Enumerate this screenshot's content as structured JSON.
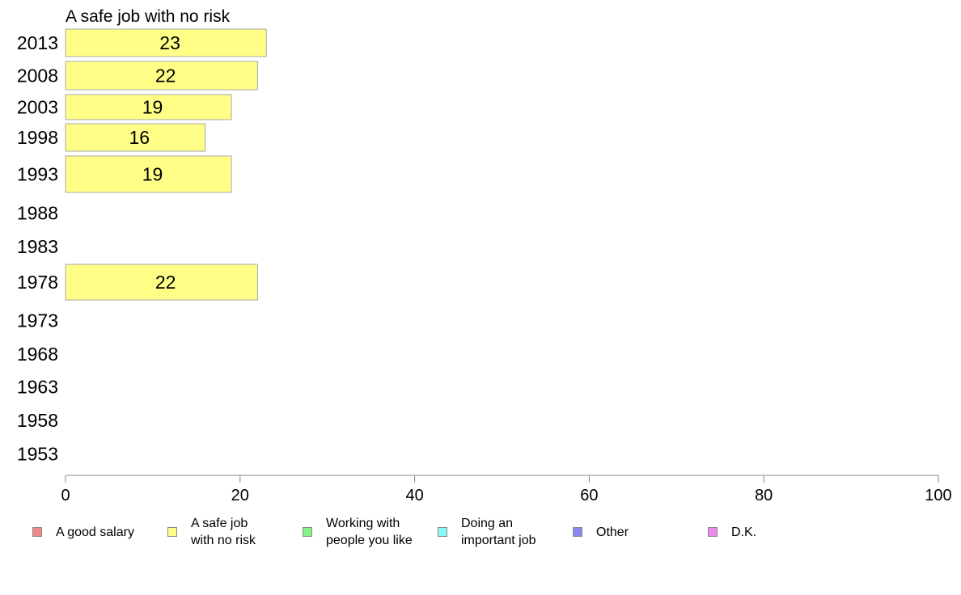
{
  "chart_data": {
    "type": "bar",
    "orientation": "horizontal",
    "title": "A safe job with no risk",
    "categories": [
      "2013",
      "2008",
      "2003",
      "1998",
      "1993",
      "1988",
      "1983",
      "1978",
      "1973",
      "1968",
      "1963",
      "1958",
      "1953"
    ],
    "values": [
      23,
      22,
      19,
      16,
      19,
      null,
      null,
      22,
      null,
      null,
      null,
      null,
      null
    ],
    "data_labels": [
      "23",
      "22",
      "19",
      "16",
      "19",
      "",
      "",
      "22",
      "",
      "",
      "",
      "",
      ""
    ],
    "xlim": [
      0,
      100
    ],
    "x_ticks": [
      0,
      20,
      40,
      60,
      80,
      100
    ],
    "x_tick_labels": [
      "0",
      "20",
      "40",
      "60",
      "80",
      "100"
    ],
    "xlabel": "",
    "ylabel": "",
    "grid": false,
    "legend_position": "bottom",
    "bar_color": "#ffff88"
  },
  "legend": [
    {
      "label": "A good salary",
      "color": "#f08a8a"
    },
    {
      "label": "A safe job\nwith no risk",
      "color": "#ffff88"
    },
    {
      "label": "Working with\npeople you like",
      "color": "#88f088"
    },
    {
      "label": "Doing an\nimportant job",
      "color": "#88f8f8"
    },
    {
      "label": "Other",
      "color": "#8888f0"
    },
    {
      "label": "D.K.",
      "color": "#f088f0"
    }
  ]
}
